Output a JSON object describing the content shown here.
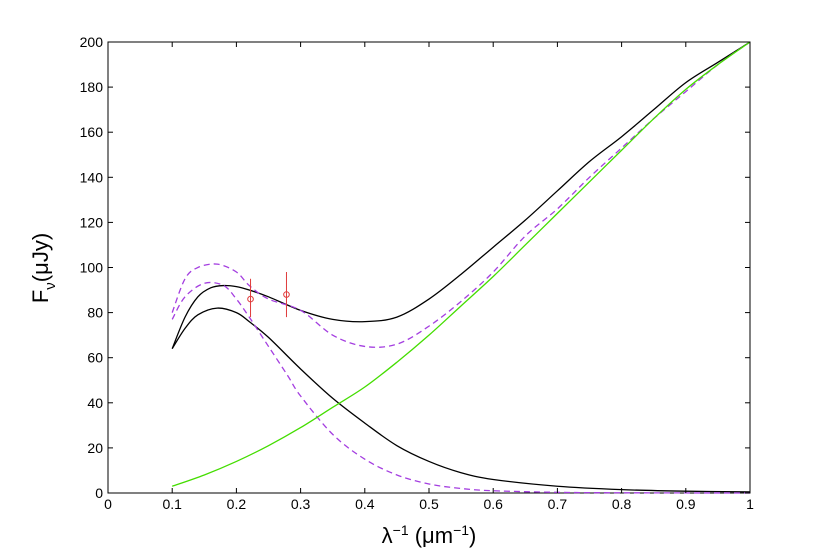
{
  "chart_data": {
    "type": "line",
    "title": "",
    "xlabel": "λ⁻¹ (μm⁻¹)",
    "ylabel": "F_ν (μJy)",
    "xlim": [
      0,
      1
    ],
    "ylim": [
      0,
      200
    ],
    "xticks": [
      "0",
      "0.1",
      "0.2",
      "0.3",
      "0.4",
      "0.5",
      "0.6",
      "0.7",
      "0.8",
      "0.9",
      "1"
    ],
    "yticks": [
      "0",
      "20",
      "40",
      "60",
      "80",
      "100",
      "120",
      "140",
      "160",
      "180",
      "200"
    ],
    "grid": false,
    "legend": "none",
    "series": [
      {
        "style": "solid",
        "color": "#000000",
        "x": [
          0.1,
          0.12,
          0.14,
          0.16,
          0.18,
          0.2,
          0.22,
          0.25,
          0.3,
          0.35,
          0.4,
          0.45,
          0.5,
          0.55,
          0.6,
          0.65,
          0.7,
          0.75,
          0.8,
          0.85,
          0.9,
          0.95,
          1.0
        ],
        "y": [
          64,
          78,
          87,
          91,
          92,
          91.5,
          90,
          87,
          81,
          77,
          76,
          78,
          86,
          97,
          109,
          121,
          134,
          147,
          158,
          170,
          182,
          191,
          200
        ]
      },
      {
        "style": "solid",
        "color": "#000000",
        "x": [
          0.1,
          0.12,
          0.14,
          0.17,
          0.2,
          0.22,
          0.25,
          0.3,
          0.35,
          0.4,
          0.45,
          0.5,
          0.55,
          0.6,
          0.7,
          0.8,
          0.9,
          1.0
        ],
        "y": [
          64,
          73,
          79,
          82,
          80,
          76,
          69,
          55,
          42,
          31,
          21,
          14,
          9,
          6,
          3,
          1.5,
          0.8,
          0.5
        ]
      },
      {
        "style": "dashed",
        "color": "#a43ee0",
        "x": [
          0.1,
          0.12,
          0.14,
          0.17,
          0.2,
          0.22,
          0.25,
          0.3,
          0.35,
          0.4,
          0.45,
          0.5,
          0.55,
          0.6,
          0.65,
          0.7,
          0.75,
          0.8,
          0.85,
          0.9,
          0.95,
          1.0
        ],
        "y": [
          80,
          95,
          100,
          101.5,
          98,
          92,
          86,
          81,
          70,
          65,
          66,
          74,
          85,
          98,
          114,
          126,
          140,
          153,
          166,
          178,
          190,
          200
        ]
      },
      {
        "style": "dashed",
        "color": "#a43ee0",
        "x": [
          0.1,
          0.12,
          0.15,
          0.18,
          0.2,
          0.22,
          0.25,
          0.28,
          0.3,
          0.35,
          0.4,
          0.45,
          0.5,
          0.55,
          0.6,
          0.7,
          0.8,
          1.0
        ],
        "y": [
          77,
          87,
          93,
          92,
          86,
          78,
          65,
          52,
          43,
          26,
          15,
          8,
          4,
          2,
          1,
          0.3,
          0.1,
          0
        ]
      },
      {
        "style": "solid",
        "color": "#44dd00",
        "x": [
          0.1,
          0.15,
          0.2,
          0.25,
          0.3,
          0.35,
          0.4,
          0.45,
          0.5,
          0.55,
          0.6,
          0.65,
          0.7,
          0.75,
          0.8,
          0.85,
          0.9,
          0.95,
          1.0
        ],
        "y": [
          3,
          8,
          14,
          21,
          29,
          38,
          47,
          58,
          70,
          83,
          96,
          110,
          124,
          138,
          152,
          166,
          179,
          190,
          200
        ]
      }
    ],
    "points": {
      "color": "#e03b3b",
      "data": [
        {
          "x": 0.222,
          "y": 86,
          "ylow": 78,
          "yhigh": 95
        },
        {
          "x": 0.278,
          "y": 88,
          "ylow": 78,
          "yhigh": 98
        }
      ]
    }
  }
}
